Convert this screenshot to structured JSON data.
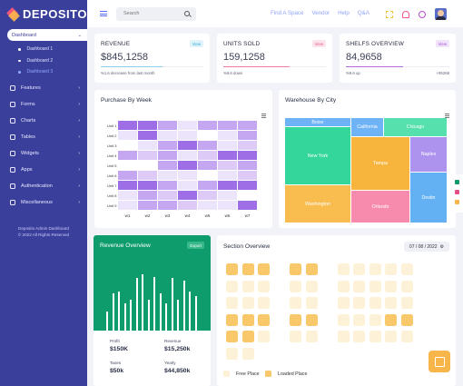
{
  "brand": {
    "name": "DEPOSITO"
  },
  "sidebar": {
    "active": {
      "label": "Dashboard"
    },
    "subitems": [
      {
        "label": "Dashboard 1"
      },
      {
        "label": "Dashboard 2"
      },
      {
        "label": "Dashboard 3"
      }
    ],
    "items": [
      {
        "label": "Features"
      },
      {
        "label": "Forms"
      },
      {
        "label": "Charts"
      },
      {
        "label": "Tables"
      },
      {
        "label": "Widgets"
      },
      {
        "label": "Apps"
      },
      {
        "label": "Authentication"
      },
      {
        "label": "Miscellaneous"
      }
    ],
    "footer": {
      "line1": "Deposito Admin Dashboard",
      "line2": "© 2022 All Rights Reserved"
    }
  },
  "header": {
    "search": {
      "placeholder": "Search"
    },
    "links": [
      "Find A Space",
      "Vendor",
      "Help",
      "Q&A"
    ]
  },
  "stats": [
    {
      "title": "REVENUE",
      "badge": "View",
      "value": "$845,1258",
      "note": "%1.6 decrease from last month",
      "right": "",
      "color": "#8fd0f0",
      "badge_bg": "#dff3fb",
      "badge_fg": "#3aa9d6",
      "fill": 0.6
    },
    {
      "title": "UNITS SOLD",
      "badge": "View",
      "value": "159,1258",
      "note": "%9.6 down",
      "right": "",
      "color": "#f07aa0",
      "badge_bg": "#fde3ec",
      "badge_fg": "#e25a88",
      "fill": 0.65
    },
    {
      "title": "SHELFS OVERVIEW",
      "badge": "View",
      "value": "84,9658",
      "note": "%9.6 up",
      "right": "+95268",
      "color": "#b46bd9",
      "badge_bg": "#f1e3fa",
      "badge_fg": "#a655d2",
      "fill": 0.55
    }
  ],
  "heatmap": {
    "title": "Purchase By Week",
    "rows": [
      "Unit 1",
      "Unit 2",
      "Unit 3",
      "Unit 4",
      "Unit 5",
      "Unit 6",
      "Unit 7",
      "Unit 8",
      "Unit 9"
    ],
    "cols": [
      "w1",
      "w2",
      "w3",
      "w4",
      "w5",
      "w6",
      "w7"
    ],
    "values": [
      [
        4,
        4,
        3,
        1,
        3,
        3,
        3
      ],
      [
        1,
        4,
        1,
        1,
        0,
        1,
        3
      ],
      [
        0,
        1,
        3,
        4,
        3,
        1,
        2
      ],
      [
        3,
        2,
        3,
        1,
        2,
        4,
        4
      ],
      [
        0,
        0,
        3,
        4,
        3,
        2,
        3
      ],
      [
        3,
        2,
        1,
        1,
        0,
        1,
        2
      ],
      [
        4,
        4,
        3,
        1,
        3,
        4,
        4
      ],
      [
        1,
        3,
        2,
        4,
        2,
        1,
        0
      ],
      [
        1,
        3,
        3,
        2,
        1,
        1,
        4
      ]
    ],
    "colors": [
      "#ffffff",
      "#ece4fb",
      "#ddcaf7",
      "#c5a6f0",
      "#9d6ee6"
    ]
  },
  "treemap": {
    "title": "Warehouse By City",
    "cells": [
      {
        "label": "Boise",
        "color": "#6db3f5"
      },
      {
        "label": "California",
        "color": "#6db3f5"
      },
      {
        "label": "Chicago",
        "color": "#55e0ad"
      },
      {
        "label": "New York",
        "color": "#33d69b"
      },
      {
        "label": "Tampa",
        "color": "#f7b53e"
      },
      {
        "label": "Naples",
        "color": "#ad92ee"
      },
      {
        "label": "Washington",
        "color": "#f9bd4f"
      },
      {
        "label": "Orlando",
        "color": "#f78bae"
      },
      {
        "label": "Destin",
        "color": "#63b0f3"
      }
    ]
  },
  "revenue": {
    "title": "Revenue Overview",
    "badge": "Export",
    "bars": [
      0.26,
      0.51,
      0.54,
      0.38,
      0.43,
      0.72,
      0.78,
      0.43,
      0.74,
      0.51,
      0.37,
      0.72,
      0.43,
      0.69,
      0.54,
      0.48
    ],
    "stats": [
      {
        "label": "Profit",
        "value": "$150K"
      },
      {
        "label": "Revenue",
        "value": "$15,250k"
      },
      {
        "label": "Taxes",
        "value": "$50k"
      },
      {
        "label": "Yearly",
        "value": "$44,850k"
      }
    ]
  },
  "section": {
    "title": "Section Overview",
    "date": "07 / 08 / 2022",
    "legend_free": "Free Place",
    "legend_loaded": "Loaded Place",
    "free_color": "#fdf1d8",
    "loaded_color": "#f8c86a",
    "rows": [
      "LLL.LL.FFFFF",
      "FFF.FF.FFFFF",
      "FFF.FF.FFFFF",
      "LLL.LL.FFFLL",
      "LLF.FF.FFFFF",
      "FF"
    ]
  }
}
